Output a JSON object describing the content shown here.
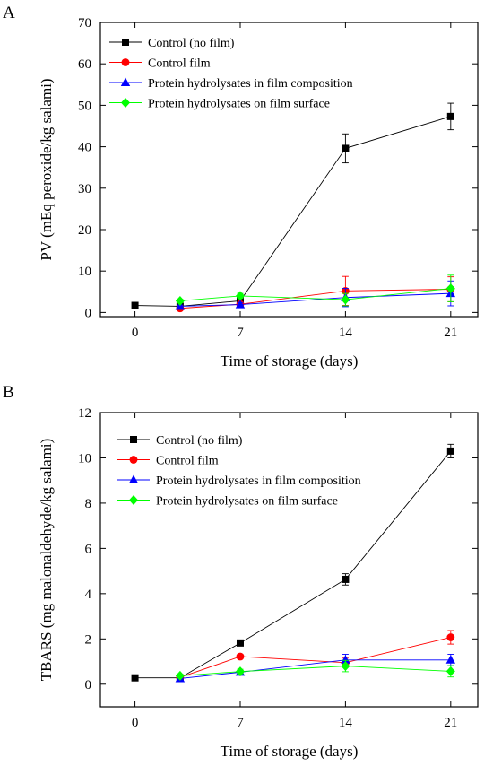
{
  "chart_data": [
    {
      "panel": "A",
      "type": "line",
      "xlabel": "Time of storage (days)",
      "ylabel": "PV (mEq peroxide/kg salami)",
      "xlim": [
        -2.3,
        22.8
      ],
      "ylim": [
        -1,
        70
      ],
      "xticks": [
        0,
        7,
        14,
        21
      ],
      "yticks": [
        0,
        10,
        20,
        30,
        40,
        50,
        60,
        70
      ],
      "legend_position": "top-left",
      "grid": false,
      "series": [
        {
          "name": "Control (no film)",
          "color": "#000000",
          "marker": "square",
          "x": [
            0,
            3,
            7,
            14,
            21
          ],
          "y": [
            1.7,
            1.5,
            2.8,
            39.6,
            47.3
          ],
          "err": [
            0,
            0.3,
            0.6,
            3.5,
            3.2
          ]
        },
        {
          "name": "Control film",
          "color": "#ff0000",
          "marker": "circle",
          "x": [
            3,
            7,
            14,
            21
          ],
          "y": [
            1.0,
            2.0,
            5.2,
            5.6
          ],
          "err": [
            0.3,
            0.5,
            3.5,
            3.0
          ]
        },
        {
          "name": "Protein hydrolysates in film composition",
          "color": "#0000ff",
          "marker": "triangle",
          "x": [
            3,
            7,
            14,
            21
          ],
          "y": [
            1.5,
            1.9,
            3.6,
            4.6
          ],
          "err": [
            0.3,
            0.5,
            2.2,
            3.0
          ]
        },
        {
          "name": "Protein hydrolysates on film surface",
          "color": "#00ff00",
          "marker": "diamond",
          "x": [
            3,
            7,
            14,
            21
          ],
          "y": [
            2.8,
            4.0,
            3.1,
            5.8
          ],
          "err": [
            0.4,
            0.6,
            1.5,
            3.2
          ]
        }
      ]
    },
    {
      "panel": "B",
      "type": "line",
      "xlabel": "Time of storage (days)",
      "ylabel": "TBARS (mg malonaldehyde/kg salami)",
      "xlim": [
        -2.3,
        22.8
      ],
      "ylim": [
        -1,
        12
      ],
      "xticks": [
        0,
        7,
        14,
        21
      ],
      "yticks": [
        0,
        2,
        4,
        6,
        8,
        10,
        12
      ],
      "legend_position": "top-left",
      "grid": false,
      "series": [
        {
          "name": "Control (no film)",
          "color": "#000000",
          "marker": "square",
          "x": [
            0,
            3,
            7,
            14,
            21
          ],
          "y": [
            0.28,
            0.28,
            1.82,
            4.63,
            10.3
          ],
          "err": [
            0,
            0.05,
            0.08,
            0.25,
            0.3
          ]
        },
        {
          "name": "Control film",
          "color": "#ff0000",
          "marker": "circle",
          "x": [
            3,
            7,
            14,
            21
          ],
          "y": [
            0.3,
            1.22,
            0.95,
            2.07
          ],
          "err": [
            0.05,
            0.1,
            0.2,
            0.3
          ]
        },
        {
          "name": "Protein hydrolysates in film composition",
          "color": "#0000ff",
          "marker": "triangle",
          "x": [
            3,
            7,
            14,
            21
          ],
          "y": [
            0.25,
            0.53,
            1.07,
            1.07
          ],
          "err": [
            0.05,
            0.08,
            0.25,
            0.25
          ]
        },
        {
          "name": "Protein hydrolysates on film surface",
          "color": "#00ff00",
          "marker": "diamond",
          "x": [
            3,
            7,
            14,
            21
          ],
          "y": [
            0.37,
            0.56,
            0.8,
            0.57
          ],
          "err": [
            0.05,
            0.1,
            0.25,
            0.25
          ]
        }
      ]
    }
  ]
}
